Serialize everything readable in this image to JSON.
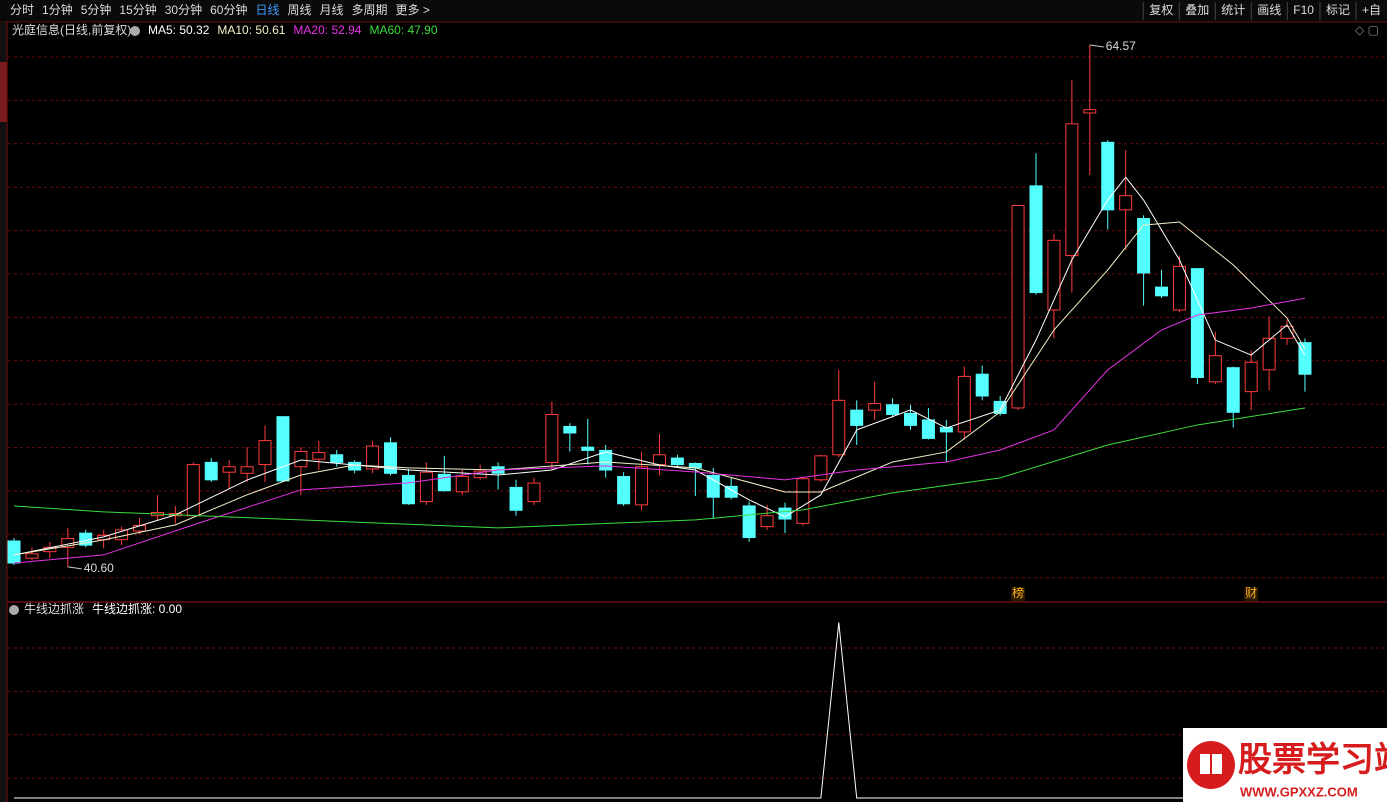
{
  "toolbar": {
    "periods": [
      "分时",
      "1分钟",
      "5分钟",
      "15分钟",
      "30分钟",
      "60分钟",
      "日线",
      "周线",
      "月线",
      "多周期",
      "更多 >"
    ],
    "active": 6,
    "tools": [
      "复权",
      "叠加",
      "统计",
      "画线",
      "F10",
      "标记",
      "+自"
    ]
  },
  "chart_data": [
    {
      "type": "candlestick",
      "title": "光庭信息(日线,前复权)",
      "up_color": "#ff3c3c",
      "down_color": "#54ffff",
      "ylim": [
        39.08,
        64.8
      ],
      "open": [
        41.79,
        41.0,
        41.3,
        41.5,
        42.15,
        41.85,
        41.85,
        42.25,
        42.95,
        42.95,
        42.95,
        45.4,
        44.95,
        44.9,
        45.3,
        47.5,
        45.2,
        45.55,
        45.75,
        45.4,
        45.1,
        46.3,
        44.8,
        43.6,
        44.85,
        44.05,
        44.7,
        45.2,
        44.25,
        43.6,
        45.4,
        47.05,
        46.1,
        45.95,
        44.75,
        43.45,
        45.3,
        45.6,
        45.35,
        44.8,
        44.3,
        43.4,
        42.45,
        43.3,
        42.6,
        44.6,
        45.75,
        47.8,
        47.8,
        48.05,
        47.65,
        47.35,
        47.0,
        46.8,
        49.45,
        48.2,
        47.9,
        58.1,
        52.4,
        54.9,
        61.45,
        60.1,
        57.0,
        56.6,
        53.45,
        52.4,
        54.3,
        49.1,
        49.75,
        48.65,
        49.65,
        51.1,
        50.9
      ],
      "high": [
        41.93,
        41.5,
        41.75,
        42.4,
        42.3,
        42.3,
        42.45,
        42.85,
        43.9,
        43.4,
        45.4,
        45.6,
        45.5,
        46.1,
        47.1,
        47.5,
        46.1,
        46.4,
        45.97,
        45.5,
        46.4,
        46.55,
        45.1,
        45.4,
        45.7,
        45.05,
        45.3,
        45.4,
        44.6,
        44.7,
        48.2,
        47.2,
        47.4,
        46.2,
        44.95,
        45.9,
        46.7,
        45.75,
        45.4,
        45.15,
        44.7,
        43.6,
        43.45,
        43.55,
        44.75,
        45.75,
        49.65,
        48.25,
        49.1,
        48.35,
        48.05,
        47.9,
        47.35,
        49.8,
        49.85,
        48.45,
        57.2,
        59.6,
        55.9,
        62.95,
        64.57,
        60.2,
        59.75,
        56.75,
        54.25,
        54.9,
        54.3,
        51.4,
        49.8,
        50.55,
        52.1,
        51.95,
        51.1
      ],
      "low": [
        40.69,
        40.9,
        41.0,
        40.6,
        41.5,
        41.45,
        41.6,
        42.1,
        42.75,
        42.6,
        42.95,
        44.5,
        44.2,
        44.5,
        44.5,
        44.5,
        43.9,
        45.05,
        45.2,
        44.9,
        44.9,
        44.8,
        43.45,
        43.45,
        44.05,
        43.9,
        44.6,
        44.15,
        42.95,
        43.45,
        45.05,
        45.9,
        45.3,
        44.7,
        43.4,
        43.2,
        44.8,
        45.15,
        43.85,
        42.8,
        43.7,
        41.75,
        42.3,
        42.15,
        42.5,
        44.5,
        45.65,
        46.2,
        47.35,
        47.45,
        46.9,
        46.45,
        45.4,
        46.45,
        48.25,
        47.55,
        47.8,
        53.1,
        51.1,
        53.2,
        58.6,
        56.1,
        55.15,
        52.6,
        52.95,
        52.3,
        49.0,
        49.0,
        47.0,
        47.8,
        48.7,
        50.8,
        48.65
      ],
      "close": [
        40.78,
        41.2,
        41.5,
        41.9,
        41.6,
        42.05,
        42.3,
        42.5,
        43.1,
        43.05,
        45.3,
        44.6,
        45.2,
        45.2,
        46.4,
        44.55,
        45.9,
        45.85,
        45.4,
        45.05,
        46.15,
        44.9,
        43.5,
        44.95,
        44.1,
        44.75,
        45.0,
        44.9,
        43.2,
        44.45,
        47.6,
        46.75,
        45.95,
        45.05,
        43.5,
        45.2,
        45.75,
        45.3,
        45.15,
        43.8,
        43.8,
        41.95,
        42.95,
        42.8,
        44.65,
        45.7,
        48.25,
        47.1,
        48.1,
        47.6,
        47.1,
        46.5,
        46.8,
        49.35,
        48.45,
        47.65,
        57.2,
        53.2,
        55.6,
        60.95,
        61.6,
        57.0,
        57.65,
        54.1,
        53.05,
        54.4,
        49.3,
        50.3,
        47.7,
        50.0,
        51.1,
        51.65,
        49.45
      ],
      "series": [
        {
          "name": "MA5: 50.32",
          "color": "#ffffff",
          "x": [
            0,
            5,
            9,
            13,
            16,
            19,
            22,
            27,
            30,
            33,
            36,
            38,
            41,
            43,
            45,
            47,
            50,
            52,
            55,
            57,
            59,
            61,
            62,
            63,
            65,
            67,
            69,
            71,
            72
          ],
          "values": [
            41.15,
            41.98,
            42.99,
            44.59,
            45.51,
            45.28,
            45.05,
            44.82,
            45.05,
            45.88,
            45.28,
            45.05,
            43.68,
            42.9,
            43.91,
            46.89,
            47.81,
            46.98,
            47.81,
            51.02,
            54.7,
            57.45,
            58.5,
            57.45,
            54.7,
            51.02,
            50.33,
            51.71,
            50.32
          ]
        },
        {
          "name": "MA10: 50.61",
          "color": "#f4f0c8",
          "x": [
            0,
            5,
            9,
            13,
            16,
            19,
            22,
            27,
            33,
            38,
            43,
            45,
            49,
            52,
            55,
            58,
            61,
            63,
            65,
            68,
            71,
            72
          ],
          "values": [
            41.15,
            41.84,
            42.53,
            43.91,
            44.82,
            45.28,
            45.15,
            45.05,
            45.42,
            45.15,
            44.04,
            44.04,
            45.42,
            45.88,
            47.72,
            51.48,
            54.24,
            56.3,
            56.44,
            54.47,
            52.03,
            50.61
          ]
        },
        {
          "name": "MA20: 52.94",
          "color": "#e632e6",
          "x": [
            0,
            5,
            10,
            16,
            22,
            27,
            33,
            38,
            43,
            47,
            52,
            55,
            58,
            61,
            64,
            66,
            69,
            72
          ],
          "values": [
            40.78,
            41.15,
            42.53,
            44.14,
            44.46,
            45.05,
            45.24,
            44.96,
            44.6,
            45.05,
            45.42,
            45.97,
            46.89,
            49.65,
            51.48,
            52.17,
            52.49,
            52.94
          ]
        },
        {
          "name": "MA60: 47.90",
          "color": "#3cdc3c",
          "x": [
            0,
            5,
            16,
            27,
            38,
            44,
            49,
            55,
            61,
            66,
            72
          ],
          "values": [
            43.4,
            43.13,
            42.76,
            42.39,
            42.76,
            43.22,
            44.0,
            44.69,
            46.2,
            47.12,
            47.9
          ]
        }
      ],
      "annotations": [
        {
          "x": 60,
          "value": 64.57
        },
        {
          "x": 3,
          "value": {
            "value": 40.6,
            "label": "40.60"
          }
        }
      ],
      "events": [
        {
          "x": 56,
          "text": "榜"
        },
        {
          "x": 69,
          "text": "财"
        }
      ]
    },
    {
      "type": "line",
      "title": "牛线边抓涨",
      "ylim": [
        0,
        1.1
      ],
      "series": [
        {
          "name": "牛线边抓涨: 0.00",
          "color": "#ffffff",
          "values": [
            0,
            0,
            0,
            0,
            0,
            0,
            0,
            0,
            0,
            0,
            0,
            0,
            0,
            0,
            0,
            0,
            0,
            0,
            0,
            0,
            0,
            0,
            0,
            0,
            0,
            0,
            0,
            0,
            0,
            0,
            0,
            0,
            0,
            0,
            0,
            0,
            0,
            0,
            0,
            0,
            0,
            0,
            0,
            0,
            0,
            0,
            1,
            0,
            0,
            0,
            0,
            0,
            0,
            0,
            0,
            0,
            0,
            0,
            0,
            0,
            0,
            0,
            0,
            0,
            0,
            0,
            0,
            0,
            0,
            0,
            0,
            0,
            0
          ]
        }
      ]
    }
  ],
  "watermark": {
    "title": "股票学习站",
    "url": "WWW.GPXXZ.COM"
  }
}
